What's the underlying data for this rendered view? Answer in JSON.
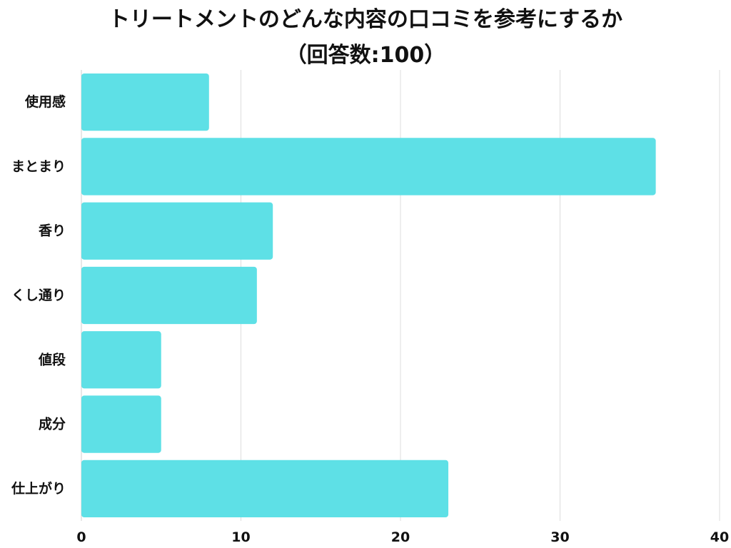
{
  "chart_data": {
    "type": "bar",
    "orientation": "horizontal",
    "title": "トリートメントのどんな内容の口コミを参考にするか",
    "subtitle": "（回答数:100）",
    "categories": [
      "使用感",
      "まとまり",
      "香り",
      "くし通り",
      "値段",
      "成分",
      "仕上がり"
    ],
    "values": [
      8,
      36,
      12,
      11,
      5,
      5,
      23
    ],
    "xlim": [
      0,
      40
    ],
    "xticks": [
      0,
      10,
      20,
      30,
      40
    ],
    "grid": true,
    "bar_color": "#5ee0e6",
    "grid_color": "#dddddd",
    "text_color": "#111111"
  }
}
